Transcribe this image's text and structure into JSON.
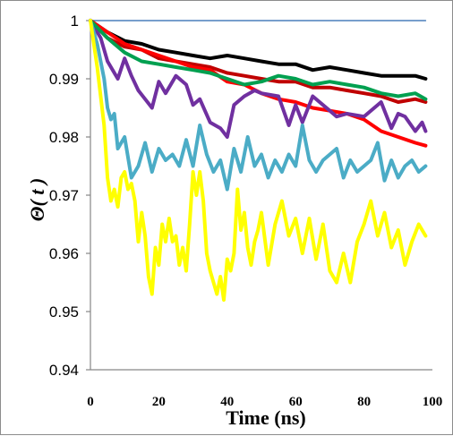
{
  "chart_data": {
    "type": "line",
    "xlabel": "Time (ns)",
    "ylabel": "Θ( t )",
    "xlim": [
      0,
      100
    ],
    "ylim": [
      0.94,
      1.0
    ],
    "x_ticks": [
      "0",
      "20",
      "40",
      "60",
      "80",
      "100"
    ],
    "y_ticks": [
      "0.94",
      "0.95",
      "0.96",
      "0.97",
      "0.98",
      "0.99",
      "1"
    ],
    "grid": false,
    "legend": "none",
    "series": [
      {
        "color": "#4a7ebb",
        "x": [
          0,
          98
        ],
        "y": [
          1.0,
          1.0
        ]
      },
      {
        "color": "#000000",
        "x": [
          0,
          5,
          10,
          15,
          20,
          25,
          30,
          35,
          40,
          45,
          50,
          55,
          60,
          65,
          70,
          75,
          80,
          85,
          90,
          95,
          98
        ],
        "y": [
          1.0,
          0.998,
          0.9965,
          0.996,
          0.995,
          0.9945,
          0.994,
          0.9935,
          0.994,
          0.9935,
          0.993,
          0.9925,
          0.9925,
          0.9915,
          0.992,
          0.9915,
          0.991,
          0.9905,
          0.9905,
          0.9905,
          0.99
        ]
      },
      {
        "color": "#c00000",
        "x": [
          0,
          5,
          10,
          15,
          20,
          25,
          30,
          35,
          40,
          45,
          50,
          55,
          60,
          65,
          70,
          75,
          80,
          85,
          90,
          95,
          98
        ],
        "y": [
          1.0,
          0.997,
          0.9955,
          0.995,
          0.9935,
          0.993,
          0.9925,
          0.992,
          0.991,
          0.9905,
          0.99,
          0.9895,
          0.9895,
          0.9885,
          0.9885,
          0.988,
          0.9875,
          0.987,
          0.986,
          0.9865,
          0.986
        ]
      },
      {
        "color": "#ff0000",
        "x": [
          0,
          5,
          10,
          15,
          20,
          25,
          30,
          35,
          40,
          45,
          50,
          55,
          60,
          65,
          70,
          75,
          80,
          85,
          90,
          95,
          98
        ],
        "y": [
          1.0,
          0.998,
          0.996,
          0.995,
          0.994,
          0.993,
          0.992,
          0.9915,
          0.9895,
          0.989,
          0.9875,
          0.9865,
          0.986,
          0.985,
          0.9845,
          0.984,
          0.983,
          0.981,
          0.98,
          0.979,
          0.9785
        ]
      },
      {
        "color": "#7030a0",
        "x": [
          0,
          3,
          5,
          8,
          10,
          12,
          14,
          16,
          18,
          20,
          22,
          25,
          28,
          30,
          32,
          35,
          38,
          40,
          42,
          45,
          48,
          50,
          55,
          58,
          60,
          62,
          65,
          70,
          72,
          75,
          80,
          85,
          88,
          90,
          92,
          95,
          97,
          98
        ],
        "y": [
          1.0,
          0.997,
          0.993,
          0.99,
          0.9935,
          0.9905,
          0.988,
          0.9865,
          0.985,
          0.9895,
          0.9875,
          0.9905,
          0.989,
          0.9855,
          0.9865,
          0.9825,
          0.9815,
          0.98,
          0.9855,
          0.987,
          0.988,
          0.9875,
          0.987,
          0.982,
          0.9855,
          0.9825,
          0.987,
          0.9845,
          0.9835,
          0.984,
          0.9835,
          0.986,
          0.9815,
          0.984,
          0.9835,
          0.981,
          0.9825,
          0.981
        ]
      },
      {
        "color": "#00a050",
        "x": [
          0,
          5,
          10,
          15,
          20,
          25,
          30,
          35,
          40,
          45,
          50,
          55,
          60,
          65,
          70,
          75,
          80,
          85,
          90,
          95,
          98
        ],
        "y": [
          1.0,
          0.997,
          0.9945,
          0.993,
          0.9925,
          0.992,
          0.9915,
          0.991,
          0.99,
          0.989,
          0.9895,
          0.9905,
          0.99,
          0.989,
          0.9895,
          0.989,
          0.9885,
          0.9875,
          0.987,
          0.9875,
          0.9865
        ]
      },
      {
        "color": "#4bacc6",
        "x": [
          0,
          2,
          4,
          5,
          6,
          7,
          8,
          10,
          12,
          14,
          16,
          18,
          20,
          22,
          24,
          26,
          28,
          30,
          32,
          34,
          36,
          38,
          40,
          42,
          44,
          46,
          48,
          50,
          52,
          54,
          56,
          58,
          60,
          62,
          64,
          66,
          68,
          70,
          72,
          74,
          76,
          78,
          80,
          82,
          84,
          86,
          88,
          90,
          92,
          94,
          96,
          98
        ],
        "y": [
          1.0,
          0.996,
          0.99,
          0.985,
          0.983,
          0.984,
          0.978,
          0.98,
          0.973,
          0.975,
          0.979,
          0.974,
          0.978,
          0.976,
          0.977,
          0.975,
          0.9795,
          0.975,
          0.982,
          0.977,
          0.974,
          0.976,
          0.971,
          0.978,
          0.974,
          0.98,
          0.975,
          0.977,
          0.973,
          0.976,
          0.974,
          0.977,
          0.975,
          0.982,
          0.976,
          0.974,
          0.976,
          0.977,
          0.978,
          0.973,
          0.976,
          0.974,
          0.975,
          0.976,
          0.979,
          0.9725,
          0.976,
          0.973,
          0.975,
          0.976,
          0.974,
          0.975
        ]
      },
      {
        "color": "#ffff00",
        "x": [
          0,
          2,
          4,
          5,
          6,
          7,
          8,
          9,
          10,
          11,
          12,
          13,
          14,
          15,
          16,
          17,
          18,
          19,
          20,
          21,
          22,
          23,
          24,
          25,
          26,
          27,
          28,
          29,
          30,
          31,
          32,
          33,
          34,
          35,
          36,
          37,
          38,
          39,
          40,
          41,
          42,
          43,
          44,
          45,
          46,
          47,
          48,
          49,
          50,
          52,
          54,
          56,
          58,
          60,
          62,
          64,
          66,
          68,
          70,
          72,
          74,
          76,
          78,
          80,
          82,
          84,
          86,
          88,
          90,
          92,
          94,
          96,
          98
        ],
        "y": [
          1.0,
          0.992,
          0.982,
          0.973,
          0.969,
          0.971,
          0.968,
          0.973,
          0.974,
          0.971,
          0.972,
          0.969,
          0.962,
          0.967,
          0.963,
          0.956,
          0.953,
          0.961,
          0.958,
          0.965,
          0.962,
          0.966,
          0.962,
          0.963,
          0.958,
          0.961,
          0.957,
          0.965,
          0.974,
          0.97,
          0.974,
          0.969,
          0.96,
          0.957,
          0.955,
          0.953,
          0.956,
          0.952,
          0.959,
          0.957,
          0.96,
          0.971,
          0.964,
          0.967,
          0.961,
          0.958,
          0.962,
          0.964,
          0.967,
          0.958,
          0.965,
          0.969,
          0.963,
          0.966,
          0.96,
          0.966,
          0.959,
          0.965,
          0.957,
          0.955,
          0.96,
          0.955,
          0.962,
          0.965,
          0.969,
          0.963,
          0.967,
          0.961,
          0.964,
          0.958,
          0.962,
          0.965,
          0.963
        ]
      }
    ]
  }
}
